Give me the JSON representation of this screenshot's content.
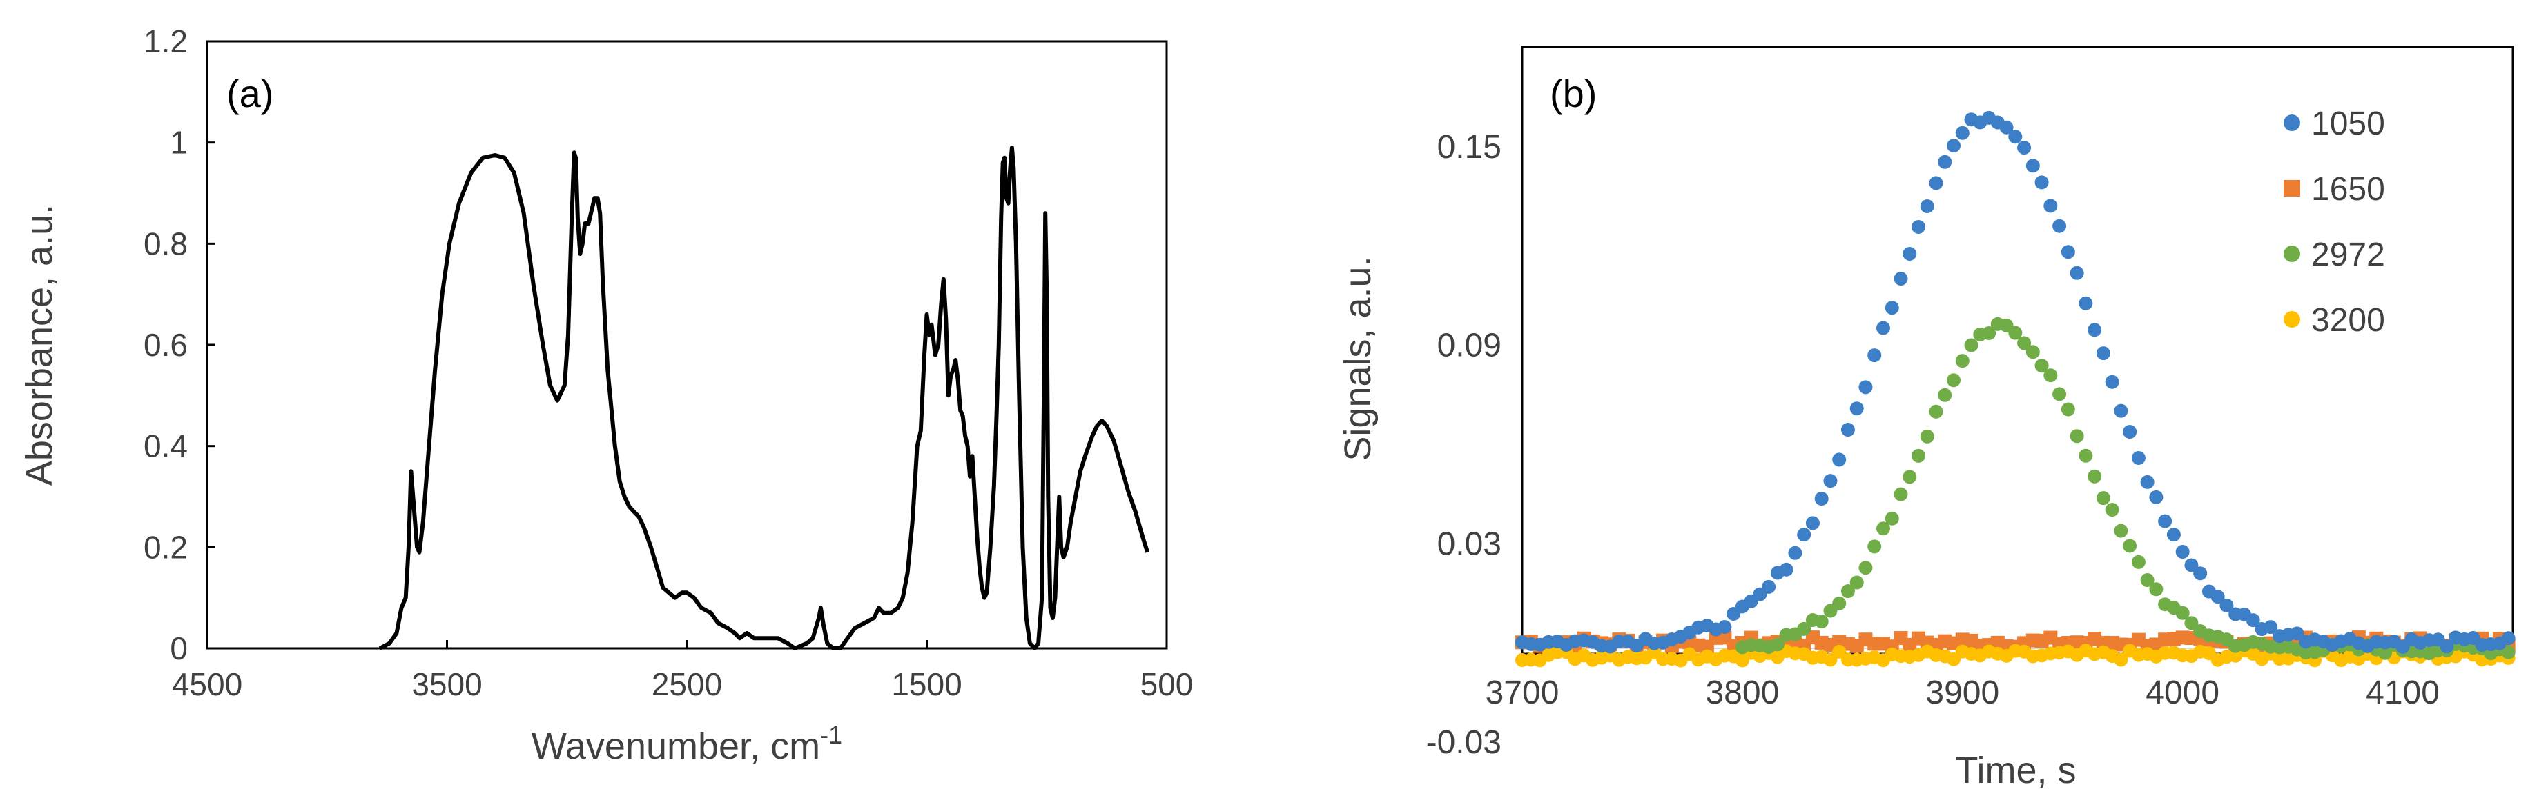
{
  "chart_data": [
    {
      "type": "line",
      "panel_label": "(a)",
      "xlabel": "Wavenumber,  cm",
      "xlabel_sup": "-1",
      "ylabel": "Absorbance, a.u.",
      "xlim": [
        4500,
        500
      ],
      "ylim": [
        0,
        1.2
      ],
      "x_ticks": [
        "4500",
        "3500",
        "2500",
        "1500",
        "500"
      ],
      "x_tick_values": [
        4500,
        3500,
        2500,
        1500,
        500
      ],
      "y_ticks": [
        "0",
        "0.2",
        "0.4",
        "0.6",
        "0.8",
        "1",
        "1.2"
      ],
      "y_tick_values": [
        0,
        0.2,
        0.4,
        0.6,
        0.8,
        1.0,
        1.2
      ],
      "series": [
        {
          "name": "spectrum",
          "color": "#000000",
          "points": [
            [
              3780,
              0.0
            ],
            [
              3740,
              0.01
            ],
            [
              3710,
              0.03
            ],
            [
              3690,
              0.08
            ],
            [
              3672,
              0.1
            ],
            [
              3660,
              0.2
            ],
            [
              3650,
              0.35
            ],
            [
              3638,
              0.28
            ],
            [
              3625,
              0.2
            ],
            [
              3615,
              0.19
            ],
            [
              3600,
              0.25
            ],
            [
              3575,
              0.4
            ],
            [
              3550,
              0.55
            ],
            [
              3520,
              0.7
            ],
            [
              3490,
              0.8
            ],
            [
              3450,
              0.88
            ],
            [
              3400,
              0.94
            ],
            [
              3350,
              0.97
            ],
            [
              3300,
              0.975
            ],
            [
              3260,
              0.97
            ],
            [
              3220,
              0.94
            ],
            [
              3180,
              0.86
            ],
            [
              3140,
              0.72
            ],
            [
              3100,
              0.6
            ],
            [
              3070,
              0.52
            ],
            [
              3040,
              0.49
            ],
            [
              3010,
              0.52
            ],
            [
              2995,
              0.62
            ],
            [
              2980,
              0.85
            ],
            [
              2970,
              0.98
            ],
            [
              2963,
              0.97
            ],
            [
              2955,
              0.85
            ],
            [
              2945,
              0.78
            ],
            [
              2935,
              0.8
            ],
            [
              2925,
              0.84
            ],
            [
              2910,
              0.84
            ],
            [
              2900,
              0.86
            ],
            [
              2885,
              0.89
            ],
            [
              2872,
              0.89
            ],
            [
              2862,
              0.86
            ],
            [
              2850,
              0.72
            ],
            [
              2830,
              0.55
            ],
            [
              2800,
              0.4
            ],
            [
              2780,
              0.33
            ],
            [
              2760,
              0.3
            ],
            [
              2740,
              0.28
            ],
            [
              2720,
              0.27
            ],
            [
              2700,
              0.26
            ],
            [
              2680,
              0.24
            ],
            [
              2650,
              0.2
            ],
            [
              2600,
              0.12
            ],
            [
              2550,
              0.1
            ],
            [
              2520,
              0.11
            ],
            [
              2500,
              0.11
            ],
            [
              2470,
              0.1
            ],
            [
              2440,
              0.08
            ],
            [
              2400,
              0.07
            ],
            [
              2370,
              0.05
            ],
            [
              2330,
              0.04
            ],
            [
              2300,
              0.03
            ],
            [
              2280,
              0.02
            ],
            [
              2250,
              0.03
            ],
            [
              2220,
              0.02
            ],
            [
              2180,
              0.02
            ],
            [
              2150,
              0.02
            ],
            [
              2120,
              0.02
            ],
            [
              2080,
              0.01
            ],
            [
              2050,
              0.0
            ],
            [
              2000,
              0.01
            ],
            [
              1975,
              0.02
            ],
            [
              1950,
              0.06
            ],
            [
              1942,
              0.08
            ],
            [
              1932,
              0.05
            ],
            [
              1915,
              0.01
            ],
            [
              1890,
              0.0
            ],
            [
              1860,
              0.0
            ],
            [
              1830,
              0.02
            ],
            [
              1800,
              0.04
            ],
            [
              1760,
              0.05
            ],
            [
              1720,
              0.06
            ],
            [
              1700,
              0.08
            ],
            [
              1680,
              0.07
            ],
            [
              1650,
              0.07
            ],
            [
              1620,
              0.08
            ],
            [
              1600,
              0.1
            ],
            [
              1580,
              0.15
            ],
            [
              1560,
              0.25
            ],
            [
              1540,
              0.4
            ],
            [
              1525,
              0.43
            ],
            [
              1510,
              0.58
            ],
            [
              1500,
              0.66
            ],
            [
              1490,
              0.62
            ],
            [
              1480,
              0.64
            ],
            [
              1465,
              0.58
            ],
            [
              1452,
              0.6
            ],
            [
              1440,
              0.68
            ],
            [
              1430,
              0.73
            ],
            [
              1420,
              0.65
            ],
            [
              1410,
              0.5
            ],
            [
              1400,
              0.54
            ],
            [
              1390,
              0.55
            ],
            [
              1380,
              0.57
            ],
            [
              1370,
              0.53
            ],
            [
              1360,
              0.47
            ],
            [
              1350,
              0.46
            ],
            [
              1340,
              0.42
            ],
            [
              1330,
              0.4
            ],
            [
              1320,
              0.34
            ],
            [
              1310,
              0.38
            ],
            [
              1300,
              0.3
            ],
            [
              1290,
              0.22
            ],
            [
              1280,
              0.16
            ],
            [
              1270,
              0.12
            ],
            [
              1260,
              0.1
            ],
            [
              1250,
              0.11
            ],
            [
              1235,
              0.2
            ],
            [
              1220,
              0.32
            ],
            [
              1210,
              0.45
            ],
            [
              1200,
              0.6
            ],
            [
              1190,
              0.85
            ],
            [
              1183,
              0.96
            ],
            [
              1176,
              0.97
            ],
            [
              1168,
              0.89
            ],
            [
              1160,
              0.88
            ],
            [
              1152,
              0.95
            ],
            [
              1145,
              0.99
            ],
            [
              1138,
              0.95
            ],
            [
              1128,
              0.8
            ],
            [
              1115,
              0.5
            ],
            [
              1100,
              0.2
            ],
            [
              1085,
              0.06
            ],
            [
              1070,
              0.01
            ],
            [
              1050,
              0.0
            ],
            [
              1035,
              0.01
            ],
            [
              1020,
              0.1
            ],
            [
              1012,
              0.5
            ],
            [
              1006,
              0.86
            ],
            [
              1000,
              0.7
            ],
            [
              994,
              0.3
            ],
            [
              985,
              0.08
            ],
            [
              975,
              0.06
            ],
            [
              965,
              0.1
            ],
            [
              955,
              0.22
            ],
            [
              948,
              0.3
            ],
            [
              940,
              0.2
            ],
            [
              930,
              0.18
            ],
            [
              915,
              0.2
            ],
            [
              900,
              0.25
            ],
            [
              880,
              0.3
            ],
            [
              860,
              0.35
            ],
            [
              840,
              0.38
            ],
            [
              810,
              0.42
            ],
            [
              790,
              0.44
            ],
            [
              770,
              0.45
            ],
            [
              750,
              0.44
            ],
            [
              720,
              0.41
            ],
            [
              690,
              0.36
            ],
            [
              660,
              0.31
            ],
            [
              630,
              0.27
            ],
            [
              600,
              0.22
            ],
            [
              580,
              0.19
            ]
          ]
        }
      ]
    },
    {
      "type": "scatter",
      "panel_label": "(b)",
      "xlabel": "Time, s",
      "ylabel": "Signals, a.u.",
      "xlim": [
        3700,
        4150
      ],
      "ylim": [
        -0.03,
        0.18
      ],
      "x_ticks": [
        "3700",
        "3800",
        "3900",
        "4000",
        "4100"
      ],
      "x_tick_values": [
        3700,
        3800,
        3900,
        4000,
        4100
      ],
      "y_ticks": [
        "0.15",
        "0.09",
        "0.03",
        "-0.03"
      ],
      "y_tick_values": [
        0.15,
        0.09,
        0.03,
        -0.03
      ],
      "series": [
        {
          "name": "1050",
          "color": "#3d7fc6",
          "marker": "circle",
          "baseline": 0.0,
          "peak": 0.159,
          "center": 3912,
          "sigma": 47,
          "x_start": 3700,
          "x_end": 4150,
          "step": 4
        },
        {
          "name": "1650",
          "color": "#ed7d31",
          "marker": "square",
          "baseline": 0.0,
          "peak": 0.0,
          "center": 3912,
          "sigma": 47,
          "x_start": 3700,
          "x_end": 4150,
          "step": 4
        },
        {
          "name": "2972",
          "color": "#70ad47",
          "marker": "circle",
          "baseline": -0.002,
          "peak": 0.097,
          "center": 3918,
          "sigma": 38,
          "x_start": 3800,
          "x_end": 4150,
          "step": 4
        },
        {
          "name": "3200",
          "color": "#ffc000",
          "marker": "circle",
          "baseline": -0.004,
          "peak": 0.0,
          "center": 3912,
          "sigma": 47,
          "x_start": 3700,
          "x_end": 4150,
          "step": 4
        }
      ]
    }
  ]
}
